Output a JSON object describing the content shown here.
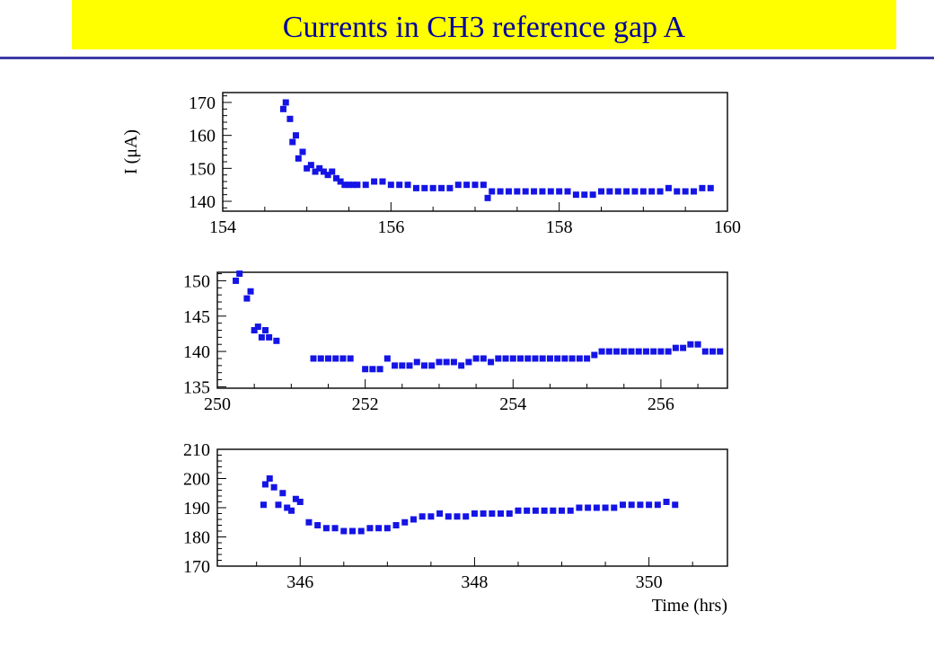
{
  "page": {
    "title": "Currents in CH3 reference gap A"
  },
  "colors": {
    "title_background": "#ffff00",
    "title_text": "#0000a0",
    "rule": "#3b3ba8",
    "marker": "#1414e6",
    "axes": "#000000"
  },
  "chart_data": [
    {
      "type": "scatter",
      "title": "",
      "xlabel": "",
      "ylabel": "I (μA)",
      "xlim": [
        154,
        160
      ],
      "ylim": [
        137,
        173
      ],
      "xticks": [
        "154",
        "156",
        "158",
        "160"
      ],
      "yticks": [
        "140",
        "150",
        "160",
        "170"
      ],
      "grid": false,
      "series": [
        {
          "x": [
            154.72,
            154.75,
            154.8,
            154.83,
            154.87,
            154.9,
            154.95,
            155.0,
            155.05,
            155.1,
            155.15,
            155.2,
            155.25,
            155.3,
            155.35,
            155.4,
            155.45,
            155.5,
            155.55,
            155.6,
            155.7,
            155.8,
            155.9,
            156.0,
            156.1,
            156.2,
            156.3,
            156.4,
            156.5,
            156.6,
            156.7,
            156.8,
            156.9,
            157.0,
            157.1,
            157.15,
            157.2,
            157.3,
            157.4,
            157.5,
            157.6,
            157.7,
            157.8,
            157.9,
            158.0,
            158.1,
            158.2,
            158.3,
            158.4,
            158.5,
            158.6,
            158.7,
            158.8,
            158.9,
            159.0,
            159.1,
            159.2,
            159.3,
            159.4,
            159.5,
            159.6,
            159.7,
            159.8
          ],
          "y": [
            168,
            170,
            165,
            158,
            160,
            153,
            155,
            150,
            151,
            149,
            150,
            149,
            148,
            149,
            147,
            146,
            145,
            145,
            145,
            145,
            145,
            146,
            146,
            145,
            145,
            145,
            144,
            144,
            144,
            144,
            144,
            145,
            145,
            145,
            145,
            141,
            143,
            143,
            143,
            143,
            143,
            143,
            143,
            143,
            143,
            143,
            142,
            142,
            142,
            143,
            143,
            143,
            143,
            143,
            143,
            143,
            143,
            144,
            143,
            143,
            143,
            144,
            144
          ]
        }
      ]
    },
    {
      "type": "scatter",
      "title": "",
      "xlabel": "",
      "ylabel": "",
      "xlim": [
        250,
        256.9
      ],
      "ylim": [
        134.8,
        151.2
      ],
      "xticks": [
        "250",
        "252",
        "254",
        "256"
      ],
      "yticks": [
        "135",
        "140",
        "145",
        "150"
      ],
      "grid": false,
      "series": [
        {
          "x": [
            250.25,
            250.3,
            250.4,
            250.45,
            250.5,
            250.55,
            250.6,
            250.65,
            250.7,
            250.8,
            251.3,
            251.4,
            251.5,
            251.6,
            251.7,
            251.8,
            252.0,
            252.1,
            252.2,
            252.3,
            252.4,
            252.5,
            252.6,
            252.7,
            252.8,
            252.9,
            253.0,
            253.1,
            253.2,
            253.3,
            253.4,
            253.5,
            253.6,
            253.7,
            253.8,
            253.9,
            254.0,
            254.1,
            254.2,
            254.3,
            254.4,
            254.5,
            254.6,
            254.7,
            254.8,
            254.9,
            255.0,
            255.1,
            255.2,
            255.3,
            255.4,
            255.5,
            255.6,
            255.7,
            255.8,
            255.9,
            256.0,
            256.1,
            256.2,
            256.3,
            256.4,
            256.5,
            256.6,
            256.7,
            256.8
          ],
          "y": [
            150,
            151,
            147.5,
            148.5,
            143,
            143.5,
            142,
            143,
            142,
            141.5,
            139,
            139,
            139,
            139,
            139,
            139,
            137.5,
            137.5,
            137.5,
            139,
            138,
            138,
            138,
            138.5,
            138,
            138,
            138.5,
            138.5,
            138.5,
            138,
            138.5,
            139,
            139,
            138.5,
            139,
            139,
            139,
            139,
            139,
            139,
            139,
            139,
            139,
            139,
            139,
            139,
            139,
            139.5,
            140,
            140,
            140,
            140,
            140,
            140,
            140,
            140,
            140,
            140,
            140.5,
            140.5,
            141,
            141,
            140,
            140,
            140
          ]
        }
      ]
    },
    {
      "type": "scatter",
      "title": "",
      "xlabel": "Time (hrs)",
      "ylabel": "",
      "xlim": [
        345.05,
        350.9
      ],
      "ylim": [
        170,
        210
      ],
      "xticks": [
        "346",
        "348",
        "350"
      ],
      "yticks": [
        "170",
        "180",
        "190",
        "200",
        "210"
      ],
      "grid": false,
      "series": [
        {
          "x": [
            345.58,
            345.6,
            345.65,
            345.7,
            345.75,
            345.8,
            345.85,
            345.9,
            345.95,
            346.0,
            346.1,
            346.2,
            346.3,
            346.4,
            346.5,
            346.6,
            346.7,
            346.8,
            346.9,
            347.0,
            347.1,
            347.2,
            347.3,
            347.4,
            347.5,
            347.6,
            347.7,
            347.8,
            347.9,
            348.0,
            348.1,
            348.2,
            348.3,
            348.4,
            348.5,
            348.6,
            348.7,
            348.8,
            348.9,
            349.0,
            349.1,
            349.2,
            349.3,
            349.4,
            349.5,
            349.6,
            349.7,
            349.8,
            349.9,
            350.0,
            350.1,
            350.2,
            350.3
          ],
          "y": [
            191,
            198,
            200,
            197,
            191,
            195,
            190,
            189,
            193,
            192,
            185,
            184,
            183,
            183,
            182,
            182,
            182,
            183,
            183,
            183,
            184,
            185,
            186,
            187,
            187,
            188,
            187,
            187,
            187,
            188,
            188,
            188,
            188,
            188,
            189,
            189,
            189,
            189,
            189,
            189,
            189,
            190,
            190,
            190,
            190,
            190,
            191,
            191,
            191,
            191,
            191,
            192,
            191
          ]
        }
      ]
    }
  ]
}
